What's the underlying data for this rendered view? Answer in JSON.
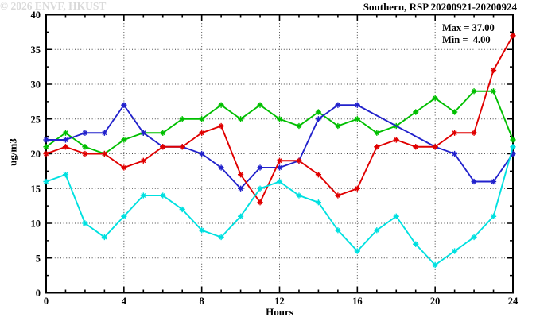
{
  "chart_data": {
    "type": "line",
    "title": "Southern, RSP 20200921-20200924",
    "xlabel": "Hours",
    "ylabel": "ug/m3",
    "xlim": [
      0,
      24
    ],
    "ylim": [
      0,
      40
    ],
    "grid": true,
    "legend_position": "none",
    "x_tick_labels": [
      "0",
      "4",
      "8",
      "12",
      "16",
      "20",
      "24"
    ],
    "y_tick_labels": [
      "0",
      "5",
      "10",
      "15",
      "20",
      "25",
      "30",
      "35",
      "40"
    ],
    "x_minor_step": 1,
    "y_minor_step": 2.5,
    "x": [
      0,
      1,
      2,
      3,
      4,
      5,
      6,
      7,
      8,
      9,
      10,
      11,
      12,
      13,
      14,
      15,
      16,
      17,
      18,
      19,
      20,
      21,
      22,
      23,
      24
    ],
    "series": [
      {
        "name": "green-series",
        "color": "#00bf00",
        "values": [
          21,
          23,
          21,
          20,
          22,
          23,
          23,
          25,
          25,
          27,
          25,
          27,
          25,
          24,
          26,
          24,
          25,
          23,
          24,
          26,
          28,
          26,
          29,
          29,
          22
        ]
      },
      {
        "name": "blue-series",
        "color": "#2222cc",
        "values": [
          22,
          22,
          23,
          23,
          27,
          23,
          21,
          21,
          20,
          18,
          15,
          18,
          18,
          19,
          25,
          27,
          27,
          null,
          null,
          null,
          21,
          20,
          16,
          16,
          20
        ]
      },
      {
        "name": "red-series",
        "color": "#e00000",
        "values": [
          20,
          21,
          20,
          20,
          18,
          19,
          21,
          21,
          23,
          24,
          17,
          13,
          19,
          19,
          17,
          14,
          15,
          21,
          22,
          21,
          21,
          23,
          23,
          32,
          37
        ]
      },
      {
        "name": "cyan-series",
        "color": "#00e0e0",
        "values": [
          16,
          17,
          10,
          8,
          11,
          14,
          14,
          12,
          9,
          8,
          11,
          15,
          16,
          14,
          13,
          9,
          6,
          9,
          11,
          7,
          4,
          6,
          8,
          11,
          21
        ]
      }
    ],
    "annotations": {
      "max_label": "Max = 37.00",
      "min_label": "Min =  4.00"
    },
    "watermark": "© 2026 ENVF, HKUST"
  }
}
